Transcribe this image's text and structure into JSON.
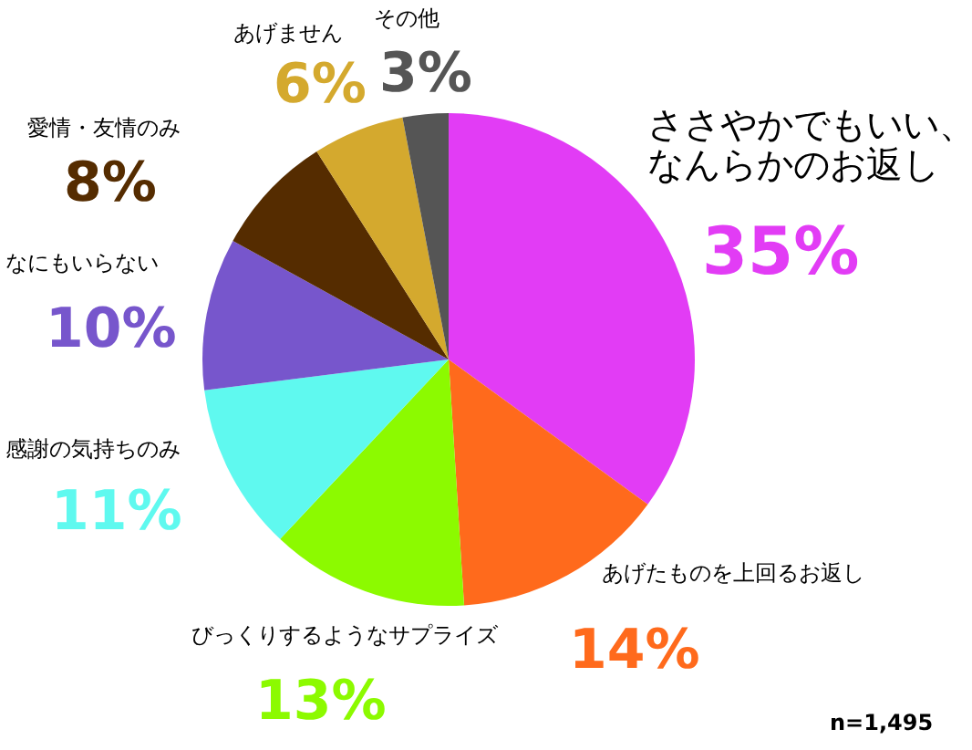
{
  "chart_data": {
    "type": "pie",
    "categories": [
      "ささやかでもいい、なんらかのお返し",
      "あげたものを上回るお返し",
      "びっくりするようなサプライズ",
      "感謝の気持ちのみ",
      "なにもいらない",
      "愛情・友情のみ",
      "あげません",
      "その他"
    ],
    "values": [
      35,
      14,
      13,
      11,
      10,
      8,
      6,
      3
    ],
    "value_labels": [
      "35%",
      "14%",
      "13%",
      "11%",
      "10%",
      "8%",
      "6%",
      "3%"
    ],
    "colors": [
      "#e23cf5",
      "#ff6a1c",
      "#8cfa00",
      "#5ff9ef",
      "#7756cc",
      "#552c00",
      "#d4a92e",
      "#555555"
    ],
    "annotations": [
      "n=1,495"
    ]
  }
}
